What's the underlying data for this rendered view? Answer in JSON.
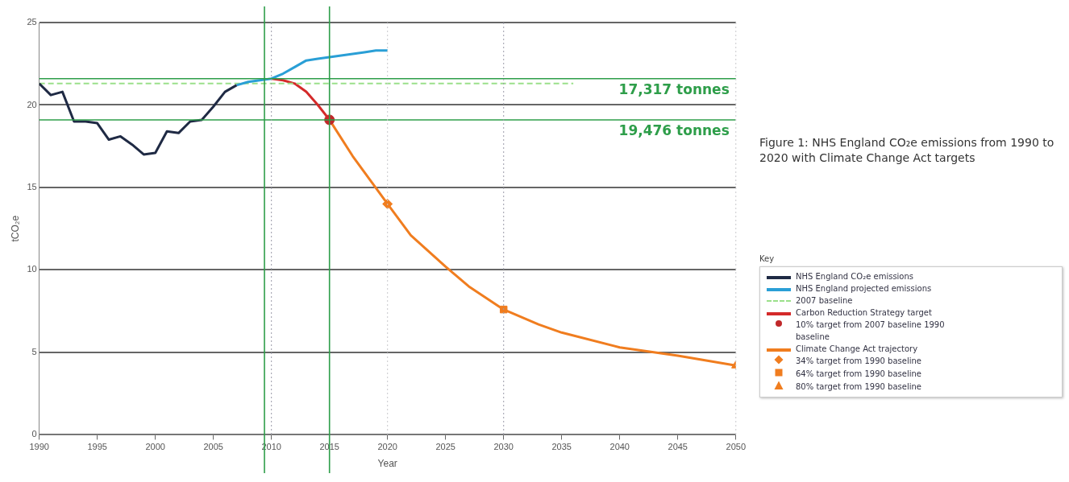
{
  "chart_data": {
    "type": "line",
    "title": "Figure 1: NHS England CO₂e emissions from 1990 to 2020 with Climate Change Act targets",
    "xlabel": "Year",
    "ylabel": "tCO₂e",
    "legend_title": "Key",
    "legend": "right",
    "xlim": [
      1990,
      2050
    ],
    "xticks": [
      1990,
      1995,
      2000,
      2005,
      2010,
      2015,
      2020,
      2025,
      2030,
      2035,
      2040,
      2045,
      2050
    ],
    "ylim": [
      0,
      25
    ],
    "yticks": [
      0,
      5,
      10,
      15,
      20,
      25
    ],
    "grid": "y",
    "series": [
      {
        "name": "NHS England CO₂e emissions",
        "color": "#1f2a44",
        "marker": "none",
        "x": [
          1990,
          1991,
          1992,
          1993,
          1994,
          1995,
          1996,
          1997,
          1998,
          1999,
          2000,
          2001,
          2002,
          2003,
          2004,
          2005,
          2006,
          2007
        ],
        "values": [
          21.3,
          20.6,
          20.8,
          19.0,
          19.0,
          18.9,
          17.9,
          18.1,
          17.6,
          17.0,
          17.1,
          18.4,
          18.3,
          19.0,
          19.1,
          19.9,
          20.8,
          21.2
        ]
      },
      {
        "name": "NHS England projected emissions",
        "color": "#2a9fd6",
        "marker": "none",
        "x": [
          2007,
          2008,
          2009,
          2010,
          2011,
          2012,
          2013,
          2014,
          2015,
          2016,
          2017,
          2018,
          2019,
          2020
        ],
        "values": [
          21.2,
          21.4,
          21.5,
          21.6,
          21.9,
          22.3,
          22.7,
          22.8,
          22.9,
          23.0,
          23.1,
          23.2,
          23.3,
          23.3
        ]
      },
      {
        "name": "2007 baseline",
        "color": "#9be08a",
        "marker": "none",
        "line_style": "dashed",
        "x": [
          1990,
          2036
        ],
        "values": [
          21.3,
          21.3
        ]
      },
      {
        "name": "Carbon Reduction Strategy target",
        "color": "#d42a2a",
        "marker": "none",
        "x": [
          2010,
          2011,
          2012,
          2013,
          2014,
          2015
        ],
        "values": [
          21.6,
          21.5,
          21.3,
          20.8,
          20.0,
          19.1
        ]
      },
      {
        "name": "10% target from 2007 baseline 1990 baseline",
        "type": "scatter",
        "color": "#c0282a",
        "marker": "circle",
        "x": [
          2015
        ],
        "values": [
          19.1
        ]
      },
      {
        "name": "Climate Change Act trajectory",
        "color": "#f07d1f",
        "marker": "none",
        "x": [
          2015,
          2017,
          2020,
          2022,
          2025,
          2027,
          2030,
          2033,
          2035,
          2040,
          2045,
          2050
        ],
        "values": [
          19.1,
          16.9,
          14.0,
          12.1,
          10.2,
          9.0,
          7.6,
          6.7,
          6.2,
          5.3,
          4.8,
          4.2
        ]
      },
      {
        "name": "34% target from 1990 baseline",
        "type": "scatter",
        "color": "#f07d1f",
        "marker": "diamond",
        "x": [
          2020
        ],
        "values": [
          14.0
        ]
      },
      {
        "name": "64% target from 1990 baseline",
        "type": "scatter",
        "color": "#f07d1f",
        "marker": "square",
        "x": [
          2030
        ],
        "values": [
          7.6
        ]
      },
      {
        "name": "80% target from 1990 baseline",
        "type": "scatter",
        "color": "#f07d1f",
        "marker": "triangle",
        "x": [
          2050
        ],
        "values": [
          4.2
        ]
      }
    ],
    "ref_lines": [
      {
        "axis": "y",
        "value": 21.6,
        "label": "17,317 tonnes",
        "color": "#2e9e4a",
        "line_style": "solid"
      },
      {
        "axis": "y",
        "value": 19.1,
        "label": "19,476 tonnes",
        "color": "#2e9e4a",
        "line_style": "solid"
      },
      {
        "axis": "x",
        "value": 2009.4,
        "color": "#2e9e4a",
        "line_style": "solid"
      },
      {
        "axis": "x",
        "value": 2015,
        "color": "#2e9e4a",
        "line_style": "solid"
      },
      {
        "axis": "x",
        "value": 2010,
        "color": "#9a9aa8",
        "line_style": "dotted"
      },
      {
        "axis": "x",
        "value": 2020,
        "color": "#c8c8cc",
        "line_style": "dotted"
      },
      {
        "axis": "x",
        "value": 2030,
        "color": "#9a9aa8",
        "line_style": "dotted"
      },
      {
        "axis": "x",
        "value": 2050,
        "color": "#c8c8cc",
        "line_style": "dotted"
      }
    ]
  }
}
